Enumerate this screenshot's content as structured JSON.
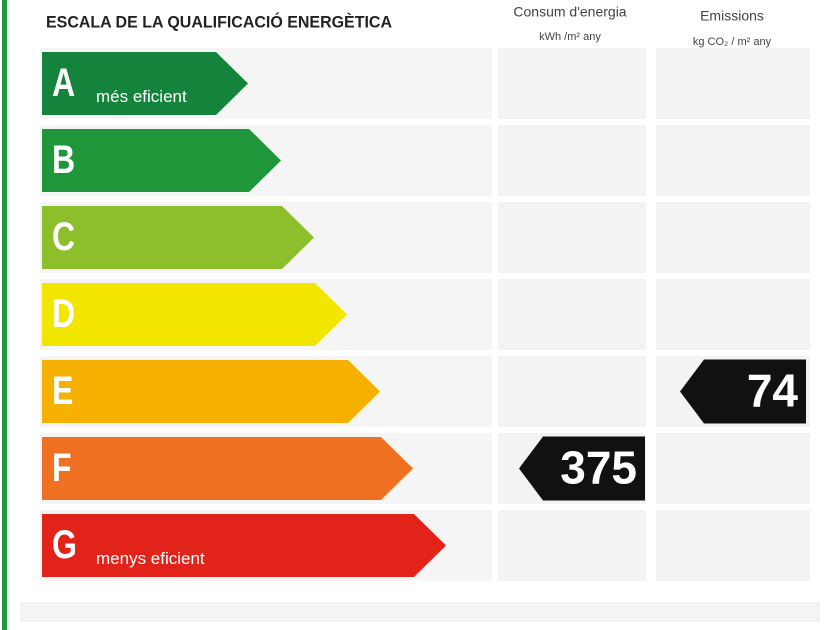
{
  "header": {
    "title": "ESCALA DE LA QUALIFICACIÓ ENERGÈTICA"
  },
  "columns": [
    {
      "title": "Consum d'energia",
      "unit": "kWh /m² any"
    },
    {
      "title": "Emissions",
      "unit": "kg CO₂ / m² any"
    }
  ],
  "classes": [
    {
      "letter": "A",
      "label": "més eficient",
      "color": "#14833b"
    },
    {
      "letter": "B",
      "label": null,
      "color": "#20963a"
    },
    {
      "letter": "C",
      "label": null,
      "color": "#8cbf2b"
    },
    {
      "letter": "D",
      "label": null,
      "color": "#f2e500"
    },
    {
      "letter": "E",
      "label": null,
      "color": "#f5b000",
      "emissions": 74
    },
    {
      "letter": "F",
      "label": null,
      "color": "#ee7020",
      "consumption": 375
    },
    {
      "letter": "G",
      "label": "menys eficient",
      "color": "#e2231a"
    }
  ]
}
